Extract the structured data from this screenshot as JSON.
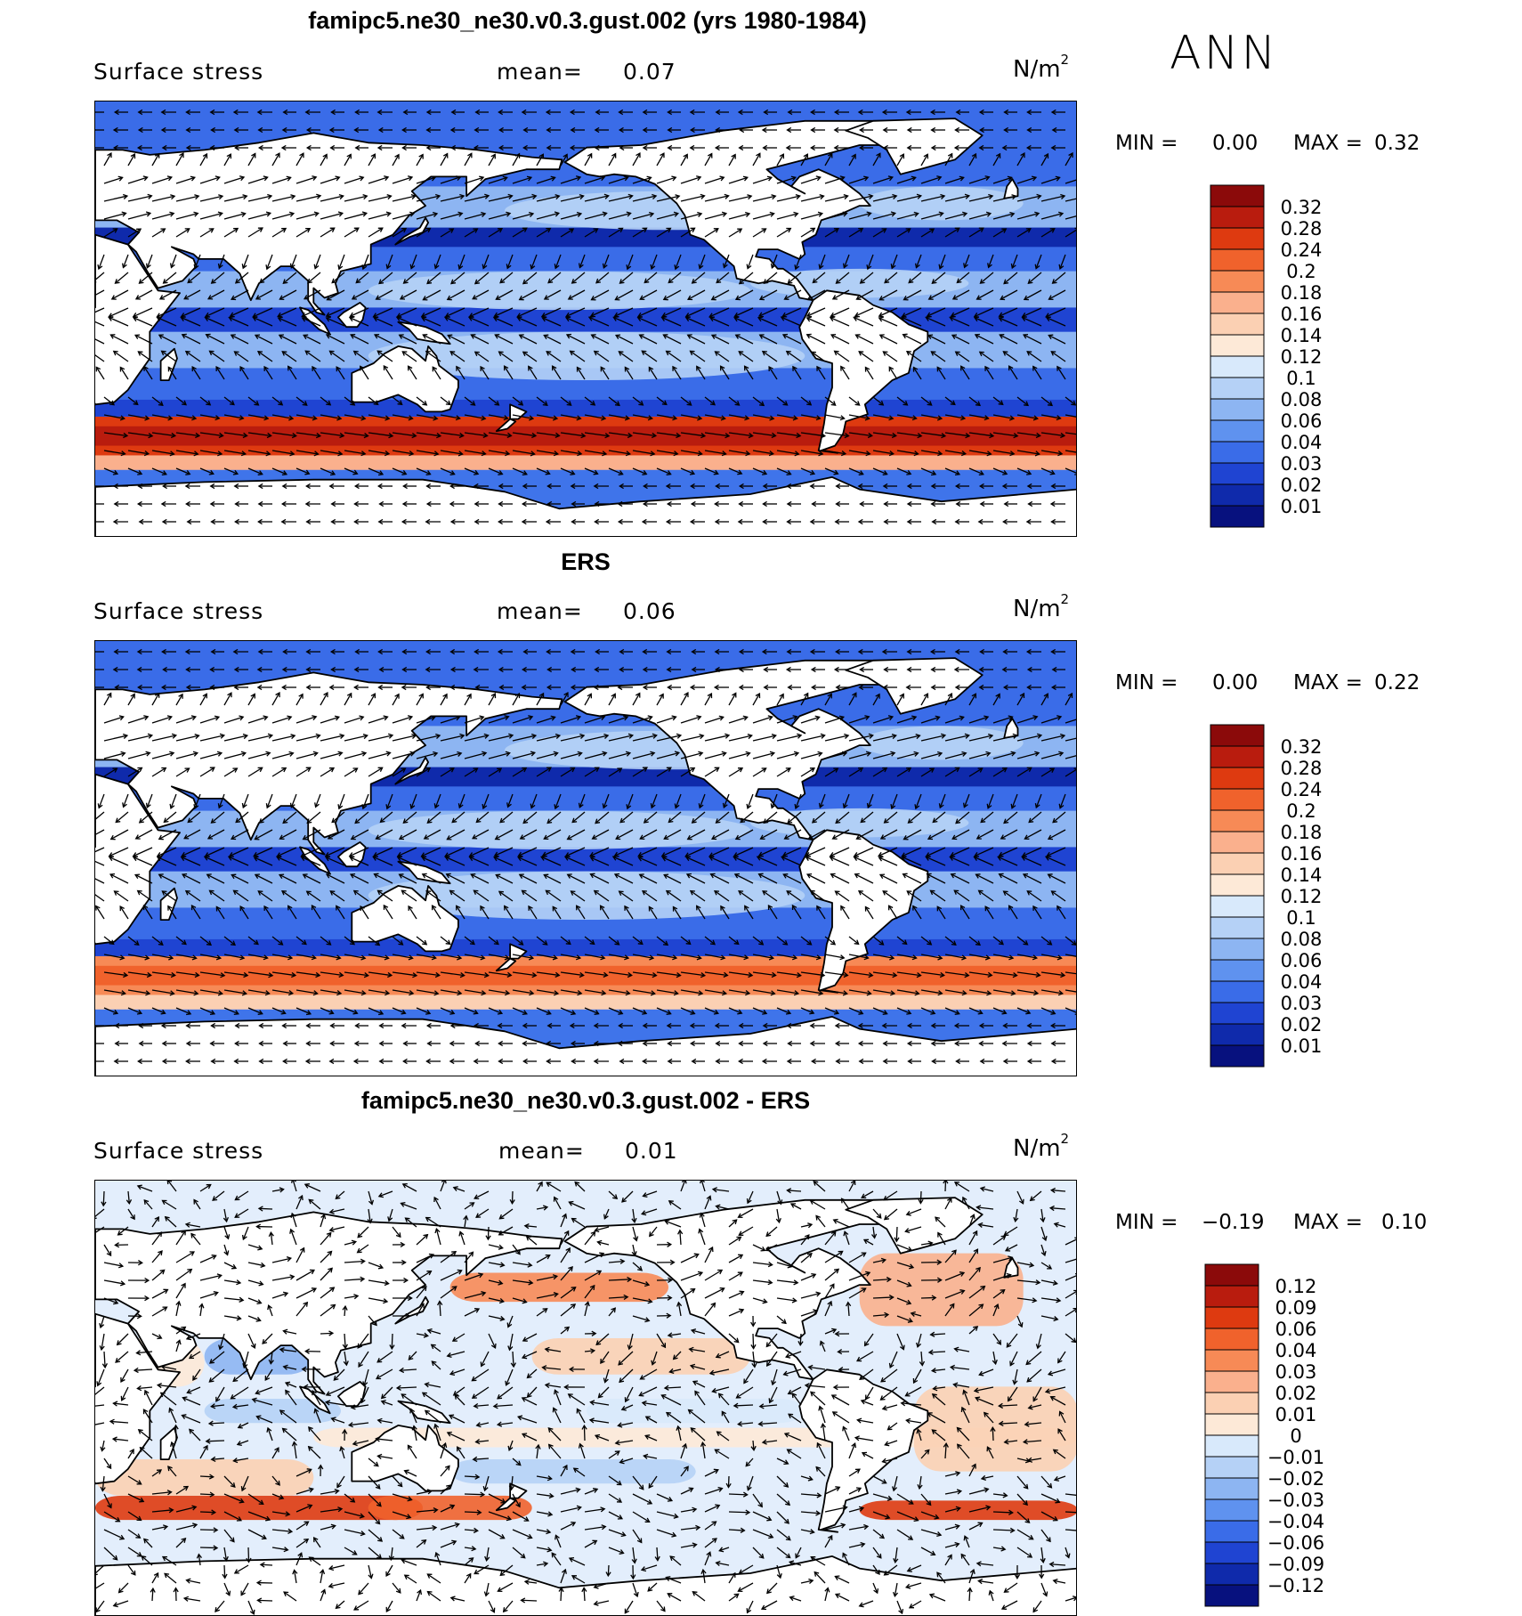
{
  "season": "ANN",
  "units": {
    "base": "N/m",
    "exp": "2"
  },
  "panels": [
    {
      "id": "model",
      "title": "famipc5.ne30_ne30.v0.3.gust.002 (yrs 1980-1984)",
      "variable": "Surface stress",
      "mean_label": "mean=",
      "mean_value": "0.07",
      "min_label": "MIN =",
      "min_value": "0.00",
      "max_label": "MAX =",
      "max_value": "0.32",
      "colorbar": {
        "labels": [
          "0.32",
          "0.28",
          "0.24",
          "0.2",
          "0.18",
          "0.16",
          "0.14",
          "0.12",
          "0.1",
          "0.08",
          "0.06",
          "0.04",
          "0.03",
          "0.02",
          "0.01"
        ],
        "colors": [
          "#8b0a0a",
          "#b91c0e",
          "#de3a10",
          "#f0622c",
          "#f78a56",
          "#fab08d",
          "#fbd0b3",
          "#fde9d7",
          "#d8e9fb",
          "#b5d1f6",
          "#8db5f2",
          "#5f92ef",
          "#3a6ce8",
          "#1f44d2",
          "#0f2aab",
          "#07117e"
        ]
      }
    },
    {
      "id": "obs",
      "title": "ERS",
      "variable": "Surface stress",
      "mean_label": "mean=",
      "mean_value": "0.06",
      "min_label": "MIN =",
      "min_value": "0.00",
      "max_label": "MAX =",
      "max_value": "0.22",
      "colorbar": {
        "labels": [
          "0.32",
          "0.28",
          "0.24",
          "0.2",
          "0.18",
          "0.16",
          "0.14",
          "0.12",
          "0.1",
          "0.08",
          "0.06",
          "0.04",
          "0.03",
          "0.02",
          "0.01"
        ],
        "colors": [
          "#8b0a0a",
          "#b91c0e",
          "#de3a10",
          "#f0622c",
          "#f78a56",
          "#fab08d",
          "#fbd0b3",
          "#fde9d7",
          "#d8e9fb",
          "#b5d1f6",
          "#8db5f2",
          "#5f92ef",
          "#3a6ce8",
          "#1f44d2",
          "#0f2aab",
          "#07117e"
        ]
      }
    },
    {
      "id": "diff",
      "title": "famipc5.ne30_ne30.v0.3.gust.002 - ERS",
      "variable": "Surface stress",
      "mean_label": "mean=",
      "mean_value": "0.01",
      "min_label": "MIN =",
      "min_value": "−0.19",
      "max_label": "MAX =",
      "max_value": "0.10",
      "colorbar": {
        "labels": [
          "0.12",
          "0.09",
          "0.06",
          "0.04",
          "0.03",
          "0.02",
          "0.01",
          "0",
          "−0.01",
          "−0.02",
          "−0.03",
          "−0.04",
          "−0.06",
          "−0.09",
          "−0.12"
        ],
        "colors": [
          "#8b0a0a",
          "#b91c0e",
          "#de3a10",
          "#f0622c",
          "#f78a56",
          "#fab08d",
          "#fbd0b3",
          "#fde9d7",
          "#d8e9fb",
          "#b5d1f6",
          "#8db5f2",
          "#5f92ef",
          "#3a6ce8",
          "#1f44d2",
          "#0f2aab",
          "#07117e"
        ]
      }
    }
  ]
}
